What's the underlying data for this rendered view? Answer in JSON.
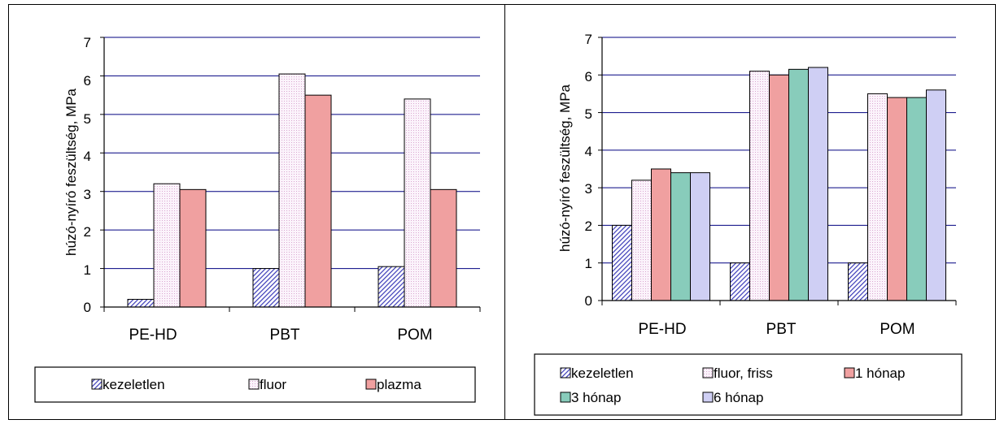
{
  "colors": {
    "kezeletlen": "#6a6ad8",
    "fluor": "#f4e9f4",
    "plazma": "#f0a0a0",
    "teal": "#88ccbb",
    "lavender": "#cfcff4",
    "grid": "#000080"
  },
  "chart_data": [
    {
      "type": "bar",
      "title": "",
      "xlabel": "",
      "ylabel": "húzó-nyíró feszültség, MPa",
      "ylim": [
        0,
        7
      ],
      "yticks": [
        "0",
        "1",
        "2",
        "3",
        "4",
        "5",
        "6",
        "7"
      ],
      "categories": [
        "PE-HD",
        "PBT",
        "POM"
      ],
      "grid": true,
      "legend_position": "bottom",
      "series": [
        {
          "name": "kezeletlen",
          "values": [
            0.2,
            1.0,
            1.05
          ]
        },
        {
          "name": "fluor",
          "values": [
            3.2,
            6.05,
            5.4
          ]
        },
        {
          "name": "plazma",
          "values": [
            3.05,
            5.5,
            3.05
          ]
        }
      ]
    },
    {
      "type": "bar",
      "title": "",
      "xlabel": "",
      "ylabel": "húzó-nyíró feszültség, MPa",
      "ylim": [
        0,
        7
      ],
      "yticks": [
        "0",
        "1",
        "2",
        "3",
        "4",
        "5",
        "6",
        "7"
      ],
      "categories": [
        "PE-HD",
        "PBT",
        "POM"
      ],
      "grid": true,
      "legend_position": "bottom",
      "series": [
        {
          "name": "kezeletlen",
          "values": [
            2.0,
            1.0,
            1.0
          ]
        },
        {
          "name": "fluor, friss",
          "values": [
            3.2,
            6.1,
            5.5
          ]
        },
        {
          "name": "1 hónap",
          "values": [
            3.5,
            6.0,
            5.4
          ]
        },
        {
          "name": "3 hónap",
          "values": [
            3.4,
            6.15,
            5.4
          ]
        },
        {
          "name": "6 hónap",
          "values": [
            3.4,
            6.2,
            5.6
          ]
        }
      ]
    }
  ]
}
